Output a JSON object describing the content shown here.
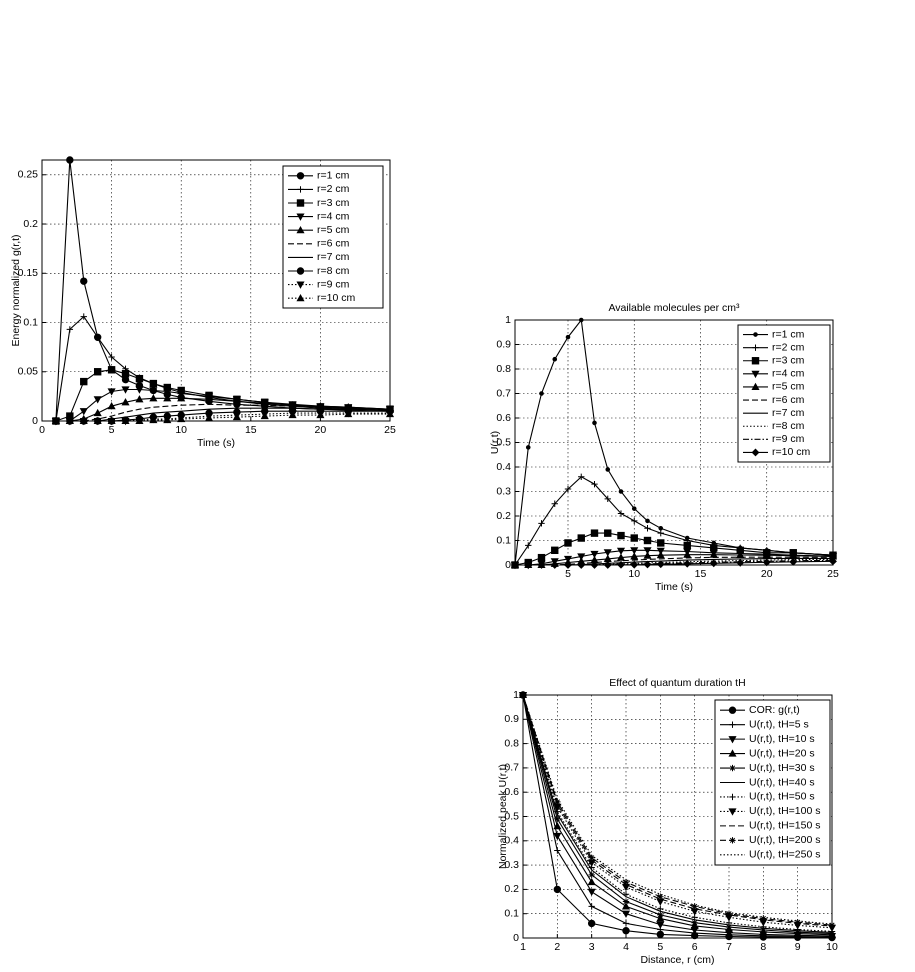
{
  "chart_data": [
    {
      "type": "line",
      "ylabel": "Energy normalized g(r,t)",
      "xlabel": "Time (s)",
      "x": [
        1,
        2,
        3,
        4,
        5,
        6,
        7,
        8,
        9,
        10,
        12,
        14,
        16,
        18,
        20,
        22,
        25
      ],
      "xlim": [
        0,
        25
      ],
      "xticks": [
        0,
        5,
        10,
        15,
        20,
        25
      ],
      "ylim": [
        0,
        0.265
      ],
      "yticks": [
        0,
        0.05,
        0.1,
        0.15,
        0.2,
        0.25
      ],
      "grid": true,
      "legend": "upper right",
      "series": [
        {
          "name": "r=1 cm",
          "color": "#000",
          "marker": "circle",
          "dash": "solid",
          "values": [
            0,
            0.265,
            0.142,
            0.085,
            0.052,
            0.042,
            0.036,
            0.031,
            0.027,
            0.024,
            0.02,
            0.017,
            0.015,
            0.013,
            0.012,
            0.011,
            0.01
          ]
        },
        {
          "name": "r=2 cm",
          "color": "#000",
          "marker": "plus",
          "dash": "solid",
          "values": [
            0,
            0.093,
            0.106,
            0.085,
            0.065,
            0.053,
            0.044,
            0.038,
            0.033,
            0.029,
            0.024,
            0.02,
            0.017,
            0.015,
            0.013,
            0.012,
            0.011
          ]
        },
        {
          "name": "r=3 cm",
          "color": "#000",
          "marker": "square",
          "dash": "solid",
          "values": [
            0,
            0.005,
            0.04,
            0.05,
            0.052,
            0.048,
            0.043,
            0.038,
            0.034,
            0.031,
            0.026,
            0.022,
            0.019,
            0.016,
            0.014,
            0.013,
            0.012
          ]
        },
        {
          "name": "r=4 cm",
          "color": "#000",
          "marker": "triangle-down",
          "dash": "solid",
          "values": [
            0,
            0,
            0.01,
            0.022,
            0.03,
            0.032,
            0.032,
            0.031,
            0.03,
            0.028,
            0.025,
            0.022,
            0.019,
            0.017,
            0.015,
            0.014,
            0.012
          ]
        },
        {
          "name": "r=5 cm",
          "color": "#000",
          "marker": "triangle",
          "dash": "solid",
          "values": [
            0,
            0,
            0.002,
            0.008,
            0.015,
            0.019,
            0.022,
            0.023,
            0.023,
            0.023,
            0.022,
            0.02,
            0.018,
            0.016,
            0.015,
            0.014,
            0.012
          ]
        },
        {
          "name": "r=6 cm",
          "color": "#000",
          "marker": "none",
          "dash": "dashed",
          "values": [
            0,
            0,
            0,
            0.002,
            0.005,
            0.009,
            0.012,
            0.014,
            0.015,
            0.016,
            0.017,
            0.016,
            0.016,
            0.015,
            0.014,
            0.013,
            0.012
          ]
        },
        {
          "name": "r=7 cm",
          "color": "#000",
          "marker": "none",
          "dash": "solid",
          "values": [
            0,
            0,
            0,
            0,
            0.002,
            0.004,
            0.006,
            0.008,
            0.009,
            0.01,
            0.012,
            0.013,
            0.013,
            0.013,
            0.012,
            0.012,
            0.011
          ]
        },
        {
          "name": "r=8 cm",
          "color": "#000",
          "marker": "circle",
          "dash": "solid",
          "values": [
            0,
            0,
            0,
            0,
            0,
            0.001,
            0.002,
            0.004,
            0.005,
            0.006,
            0.008,
            0.009,
            0.01,
            0.01,
            0.01,
            0.01,
            0.01
          ]
        },
        {
          "name": "r=9 cm",
          "color": "#000",
          "marker": "triangle-down",
          "dash": "dotted",
          "values": [
            0,
            0,
            0,
            0,
            0,
            0,
            0.001,
            0.002,
            0.002,
            0.003,
            0.005,
            0.006,
            0.007,
            0.008,
            0.008,
            0.008,
            0.008
          ]
        },
        {
          "name": "r=10 cm",
          "color": "#000",
          "marker": "triangle",
          "dash": "dotted",
          "values": [
            0,
            0,
            0,
            0,
            0,
            0,
            0,
            0.001,
            0.001,
            0.002,
            0.003,
            0.004,
            0.005,
            0.006,
            0.006,
            0.007,
            0.007
          ]
        }
      ]
    },
    {
      "type": "line",
      "title": "Available molecules per cm³",
      "ylabel": "U(r,t)",
      "xlabel": "Time (s)",
      "x": [
        1,
        2,
        3,
        4,
        5,
        6,
        7,
        8,
        9,
        10,
        11,
        12,
        14,
        16,
        18,
        20,
        22,
        25
      ],
      "xlim": [
        1,
        25
      ],
      "xticks": [
        5,
        10,
        15,
        20,
        25
      ],
      "ylim": [
        0,
        1
      ],
      "yticks": [
        0,
        0.1,
        0.2,
        0.3,
        0.4,
        0.5,
        0.6,
        0.7,
        0.8,
        0.9,
        1
      ],
      "grid": true,
      "legend": "upper right",
      "series": [
        {
          "name": "r=1 cm",
          "color": "#000",
          "marker": "dot",
          "dash": "solid",
          "values": [
            0,
            0.48,
            0.7,
            0.84,
            0.93,
            1.0,
            0.58,
            0.39,
            0.3,
            0.23,
            0.18,
            0.15,
            0.11,
            0.09,
            0.07,
            0.06,
            0.05,
            0.04
          ]
        },
        {
          "name": "r=2 cm",
          "color": "#000",
          "marker": "plus",
          "dash": "solid",
          "values": [
            0,
            0.08,
            0.17,
            0.25,
            0.31,
            0.36,
            0.33,
            0.27,
            0.21,
            0.18,
            0.15,
            0.13,
            0.1,
            0.08,
            0.07,
            0.06,
            0.05,
            0.04
          ]
        },
        {
          "name": "r=3 cm",
          "color": "#000",
          "marker": "square",
          "dash": "solid",
          "values": [
            0,
            0.01,
            0.03,
            0.06,
            0.09,
            0.11,
            0.13,
            0.13,
            0.12,
            0.11,
            0.1,
            0.09,
            0.08,
            0.07,
            0.06,
            0.05,
            0.05,
            0.04
          ]
        },
        {
          "name": "r=4 cm",
          "color": "#000",
          "marker": "triangle-down",
          "dash": "solid",
          "values": [
            0,
            0,
            0.005,
            0.015,
            0.025,
            0.035,
            0.045,
            0.052,
            0.058,
            0.06,
            0.06,
            0.058,
            0.055,
            0.05,
            0.047,
            0.044,
            0.04,
            0.036
          ]
        },
        {
          "name": "r=5 cm",
          "color": "#000",
          "marker": "triangle",
          "dash": "solid",
          "values": [
            0,
            0,
            0,
            0.005,
            0.01,
            0.015,
            0.02,
            0.025,
            0.03,
            0.035,
            0.038,
            0.04,
            0.042,
            0.042,
            0.041,
            0.04,
            0.038,
            0.035
          ]
        },
        {
          "name": "r=6 cm",
          "color": "#000",
          "marker": "none",
          "dash": "dashed",
          "values": [
            0,
            0,
            0,
            0,
            0.003,
            0.006,
            0.01,
            0.014,
            0.017,
            0.02,
            0.023,
            0.025,
            0.029,
            0.031,
            0.032,
            0.032,
            0.032,
            0.031
          ]
        },
        {
          "name": "r=7 cm",
          "color": "#000",
          "marker": "none",
          "dash": "solid",
          "values": [
            0,
            0,
            0,
            0,
            0,
            0.002,
            0.004,
            0.007,
            0.009,
            0.012,
            0.014,
            0.016,
            0.02,
            0.023,
            0.025,
            0.026,
            0.027,
            0.027
          ]
        },
        {
          "name": "r=8 cm",
          "color": "#000",
          "marker": "none",
          "dash": "dotted",
          "values": [
            0,
            0,
            0,
            0,
            0,
            0,
            0.001,
            0.003,
            0.004,
            0.006,
            0.008,
            0.01,
            0.013,
            0.016,
            0.018,
            0.02,
            0.022,
            0.023
          ]
        },
        {
          "name": "r=9 cm",
          "color": "#000",
          "marker": "none",
          "dash": "dashdot",
          "values": [
            0,
            0,
            0,
            0,
            0,
            0,
            0,
            0.001,
            0.002,
            0.003,
            0.004,
            0.006,
            0.008,
            0.011,
            0.013,
            0.015,
            0.017,
            0.019
          ]
        },
        {
          "name": "r=10 cm",
          "color": "#000",
          "marker": "diamond",
          "dash": "solid",
          "values": [
            0,
            0,
            0,
            0,
            0,
            0,
            0,
            0,
            0.001,
            0.001,
            0.002,
            0.003,
            0.005,
            0.007,
            0.009,
            0.011,
            0.013,
            0.015
          ]
        }
      ]
    },
    {
      "type": "line",
      "title": "Effect of quantum duration tH",
      "ylabel": "Normalized peak U(r,t)",
      "xlabel": "Distance, r (cm)",
      "x": [
        1,
        2,
        3,
        4,
        5,
        6,
        7,
        8,
        9,
        10
      ],
      "xlim": [
        1,
        10
      ],
      "xticks": [
        1,
        2,
        3,
        4,
        5,
        6,
        7,
        8,
        9,
        10
      ],
      "ylim": [
        0,
        1
      ],
      "yticks": [
        0,
        0.1,
        0.2,
        0.3,
        0.4,
        0.5,
        0.6,
        0.7,
        0.8,
        0.9,
        1
      ],
      "grid": true,
      "legend": "upper right",
      "series": [
        {
          "name": "COR: g(r,t)",
          "color": "#000",
          "marker": "circle",
          "dash": "solid",
          "values": [
            1,
            0.2,
            0.06,
            0.03,
            0.015,
            0.01,
            0.006,
            0.004,
            0.003,
            0.002
          ]
        },
        {
          "name": "U(r,t), tH=5 s",
          "color": "#000",
          "marker": "plus",
          "dash": "solid",
          "values": [
            1,
            0.36,
            0.13,
            0.06,
            0.035,
            0.02,
            0.013,
            0.009,
            0.006,
            0.004
          ]
        },
        {
          "name": "U(r,t), tH=10 s",
          "color": "#000",
          "marker": "triangle-down",
          "dash": "solid",
          "values": [
            1,
            0.42,
            0.19,
            0.1,
            0.055,
            0.033,
            0.022,
            0.015,
            0.011,
            0.008
          ]
        },
        {
          "name": "U(r,t), tH=20 s",
          "color": "#000",
          "marker": "triangle",
          "dash": "solid",
          "values": [
            1,
            0.46,
            0.23,
            0.13,
            0.08,
            0.05,
            0.035,
            0.025,
            0.018,
            0.013
          ]
        },
        {
          "name": "U(r,t), tH=30 s",
          "color": "#000",
          "marker": "star",
          "dash": "solid",
          "values": [
            1,
            0.49,
            0.26,
            0.15,
            0.095,
            0.063,
            0.045,
            0.033,
            0.024,
            0.018
          ]
        },
        {
          "name": "U(r,t), tH=40 s",
          "color": "#000",
          "marker": "none",
          "dash": "solid",
          "values": [
            1,
            0.51,
            0.28,
            0.17,
            0.11,
            0.075,
            0.054,
            0.04,
            0.03,
            0.023
          ]
        },
        {
          "name": "U(r,t), tH=50 s",
          "color": "#000",
          "marker": "plus",
          "dash": "dotted",
          "values": [
            1,
            0.52,
            0.29,
            0.18,
            0.12,
            0.085,
            0.062,
            0.046,
            0.035,
            0.027
          ]
        },
        {
          "name": "U(r,t), tH=100 s",
          "color": "#000",
          "marker": "triangle-down",
          "dash": "dotted",
          "values": [
            1,
            0.54,
            0.31,
            0.21,
            0.15,
            0.11,
            0.085,
            0.065,
            0.052,
            0.042
          ]
        },
        {
          "name": "U(r,t), tH=150 s",
          "color": "#000",
          "marker": "none",
          "dash": "dashed",
          "values": [
            1,
            0.55,
            0.32,
            0.22,
            0.16,
            0.12,
            0.095,
            0.075,
            0.06,
            0.049
          ]
        },
        {
          "name": "U(r,t), tH=200 s",
          "color": "#000",
          "marker": "star",
          "dash": "dashed",
          "values": [
            1,
            0.56,
            0.33,
            0.23,
            0.17,
            0.13,
            0.1,
            0.08,
            0.065,
            0.053
          ]
        },
        {
          "name": "U(r,t), tH=250 s",
          "color": "#000",
          "marker": "none",
          "dash": "dotted",
          "values": [
            1,
            0.57,
            0.34,
            0.24,
            0.18,
            0.135,
            0.105,
            0.085,
            0.07,
            0.057
          ]
        }
      ]
    }
  ]
}
